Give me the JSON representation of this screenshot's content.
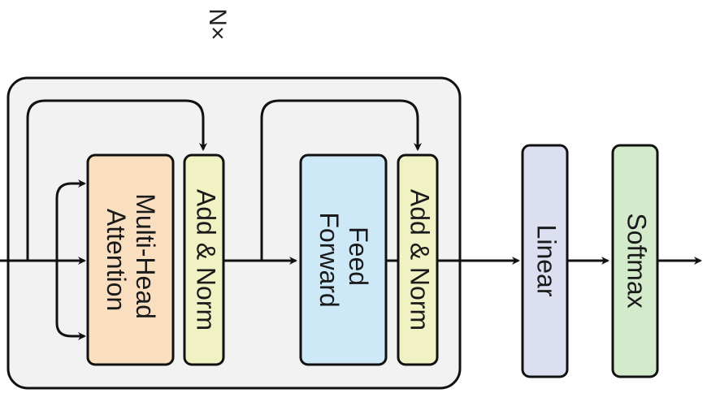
{
  "diagram": {
    "repeat_label": "N×",
    "blocks": {
      "attention": {
        "line1": "Multi-Head",
        "line2": "Attention",
        "color": "#f9dfbf"
      },
      "add_norm_1": {
        "label": "Add & Norm",
        "color": "#f1f2c4"
      },
      "feed_forward": {
        "line1": "Feed",
        "line2": "Forward",
        "color": "#cde8f6"
      },
      "add_norm_2": {
        "label": "Add & Norm",
        "color": "#f1f2c4"
      },
      "linear": {
        "label": "Linear",
        "color": "#dcdff0"
      },
      "softmax": {
        "label": "Softmax",
        "color": "#d3eacb"
      }
    },
    "colors": {
      "container_fill": "#f2f2f2",
      "stroke": "#111111"
    }
  }
}
